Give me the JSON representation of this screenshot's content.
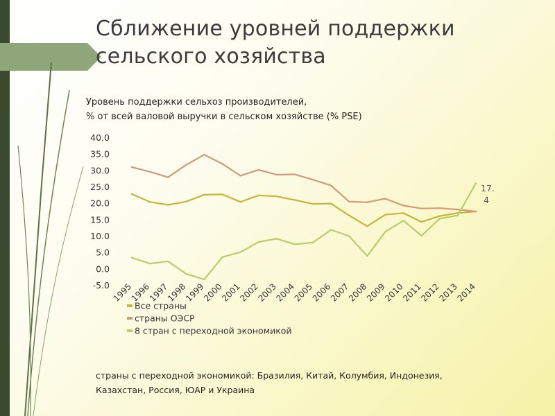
{
  "slide": {
    "title_line1": "Сближение уровней поддержки",
    "title_line2": "сельского хозяйства",
    "subtitle_line1": "Уровень поддержки сельхоз производителей,",
    "subtitle_line2": "% от всей валовой выручки в сельском хозяйстве (% PSE)",
    "footnote_line1": "страны с переходной экономикой: Бразилия, Китай, Колумбия, Индонезия,",
    "footnote_line2": "Казахстан, Россия, ЮАР и Украина",
    "colors": {
      "sidebar": "#3a4a2e",
      "tab": "#8fa57a"
    }
  },
  "chart_data": {
    "type": "line",
    "title": "",
    "xlabel": "",
    "ylabel": "",
    "ylim": [
      -5,
      40
    ],
    "ytick_labels": [
      "40.0",
      "35.0",
      "30.0",
      "25.0",
      "20.0",
      "15.0",
      "10.0",
      "5.0",
      "0.0",
      "-5.0"
    ],
    "ytick_values": [
      40,
      35,
      30,
      25,
      20,
      15,
      10,
      5,
      0,
      -5
    ],
    "categories": [
      "1995",
      "1996",
      "1997",
      "1998",
      "1999",
      "2000",
      "2001",
      "2002",
      "2003",
      "2004",
      "2005",
      "2006",
      "2007",
      "2008",
      "2009",
      "2010",
      "2011",
      "2012",
      "2013",
      "2014"
    ],
    "grid": false,
    "legend_position": "bottom-left",
    "series": [
      {
        "name": "Все страны",
        "color": "#c9b43a",
        "values": [
          22.7,
          20.3,
          19.4,
          20.4,
          22.5,
          22.6,
          20.3,
          22.3,
          22.0,
          20.9,
          19.7,
          19.8,
          16.2,
          12.9,
          16.4,
          16.9,
          14.2,
          16.0,
          16.9,
          17.4
        ]
      },
      {
        "name": "страны ОЭСР",
        "color": "#d2997a",
        "values": [
          30.9,
          29.5,
          27.8,
          31.6,
          34.7,
          31.9,
          28.3,
          30.1,
          28.6,
          28.7,
          27.1,
          25.3,
          20.4,
          20.2,
          21.3,
          19.2,
          18.3,
          18.4,
          18.0,
          17.4
        ]
      },
      {
        "name": "8 стран с переходной экономикой",
        "color": "#b8cc6a",
        "values": [
          3.3,
          1.5,
          2.2,
          -1.6,
          -3.3,
          3.5,
          5.0,
          8.1,
          9.1,
          7.4,
          7.9,
          11.8,
          9.9,
          3.8,
          11.2,
          14.6,
          10.0,
          15.2,
          16.2,
          26.0
        ]
      }
    ],
    "annotations": [
      {
        "text": "17.4",
        "line1": "17.",
        "line2": "4"
      }
    ]
  }
}
